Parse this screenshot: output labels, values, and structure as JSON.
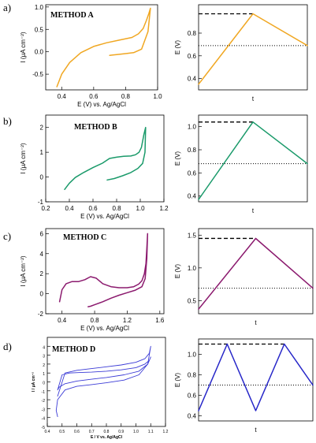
{
  "panel_labels": [
    "a)",
    "b)",
    "c)",
    "d)"
  ],
  "chart_data": [
    {
      "type": "line",
      "panel": "a)",
      "title": "METHOD A",
      "xlabel": "E (V) vs. Ag/AgCl",
      "ylabel": "I (μA cm⁻²)",
      "xlim": [
        0.3,
        1.0
      ],
      "ylim": [
        -0.85,
        1.05
      ],
      "xticks": [
        "0.4",
        "0.6",
        "0.8",
        "1.0"
      ],
      "yticks": [
        "1.0",
        "0.5",
        "0.0",
        "-0.5"
      ],
      "color": "#f0a722",
      "series": [
        {
          "x": [
            0.37,
            0.4,
            0.45,
            0.52,
            0.6,
            0.68,
            0.76,
            0.84,
            0.88,
            0.91,
            0.93,
            0.945,
            0.955,
            0.94,
            0.9,
            0.85,
            0.8,
            0.75,
            0.72,
            0.7
          ],
          "y": [
            -0.78,
            -0.5,
            -0.24,
            -0.02,
            0.12,
            0.2,
            0.26,
            0.32,
            0.4,
            0.52,
            0.7,
            0.85,
            0.97,
            0.45,
            0.06,
            -0.02,
            -0.04,
            -0.06,
            -0.07,
            -0.08
          ]
        }
      ]
    },
    {
      "type": "line",
      "panel": "a)",
      "title": "",
      "xlabel": "t",
      "ylabel": "E (V)",
      "xlim": [
        0,
        1
      ],
      "ylim": [
        0.3,
        1.05
      ],
      "yticks": [
        "0.8",
        "0.6",
        "0.4"
      ],
      "color": "#f0a722",
      "dashed_level": 0.97,
      "dotted_level": 0.69,
      "series": [
        {
          "x": [
            0.0,
            0.5,
            1.0
          ],
          "y": [
            0.35,
            0.97,
            0.69
          ]
        }
      ]
    },
    {
      "type": "line",
      "panel": "b)",
      "title": "METHOD B",
      "xlabel": "E (V) vs. Ag/AgCl",
      "ylabel": "I (μA cm⁻²)",
      "xlim": [
        0.2,
        1.2
      ],
      "ylim": [
        -1.0,
        2.5
      ],
      "xticks": [
        "0.2",
        "0.4",
        "0.6",
        "0.8",
        "1.0",
        "1.2"
      ],
      "yticks": [
        "2",
        "1",
        "0",
        "-1"
      ],
      "color": "#1a9a6a",
      "series": [
        {
          "x": [
            0.36,
            0.4,
            0.45,
            0.52,
            0.6,
            0.68,
            0.74,
            0.8,
            0.86,
            0.92,
            0.96,
            0.99,
            1.01,
            1.02,
            1.03,
            1.04,
            1.045,
            1.04,
            1.02,
            0.98,
            0.92,
            0.85,
            0.78,
            0.72
          ],
          "y": [
            -0.5,
            -0.25,
            -0.02,
            0.18,
            0.38,
            0.56,
            0.75,
            0.8,
            0.84,
            0.85,
            0.9,
            1.0,
            1.2,
            1.45,
            1.7,
            1.9,
            2.0,
            1.0,
            0.55,
            0.35,
            0.18,
            0.05,
            -0.06,
            -0.12
          ]
        }
      ]
    },
    {
      "type": "line",
      "panel": "b)",
      "title": "",
      "xlabel": "t",
      "ylabel": "E (V)",
      "xlim": [
        0,
        1
      ],
      "ylim": [
        0.35,
        1.1
      ],
      "yticks": [
        "1.0",
        "0.8",
        "0.6",
        "0.4"
      ],
      "color": "#1a9a6a",
      "dashed_level": 1.04,
      "dotted_level": 0.68,
      "series": [
        {
          "x": [
            0.0,
            0.5,
            1.0
          ],
          "y": [
            0.37,
            1.04,
            0.68
          ]
        }
      ]
    },
    {
      "type": "line",
      "panel": "c)",
      "title": "METHOD C",
      "xlabel": "E (V) vs. Ag/AgCl",
      "ylabel": "I (μA cm⁻²)",
      "xlim": [
        0.2,
        1.65
      ],
      "ylim": [
        -2,
        6.5
      ],
      "xticks": [
        "0.4",
        "0.8",
        "1.2",
        "1.6"
      ],
      "yticks": [
        "6",
        "4",
        "2",
        "0",
        "-2"
      ],
      "color": "#8b1a6e",
      "series": [
        {
          "x": [
            0.37,
            0.4,
            0.45,
            0.52,
            0.6,
            0.68,
            0.75,
            0.82,
            0.9,
            1.0,
            1.1,
            1.2,
            1.28,
            1.34,
            1.38,
            1.41,
            1.43,
            1.44,
            1.45,
            1.44,
            1.42,
            1.38,
            1.3,
            1.2,
            1.1,
            1.0,
            0.9,
            0.8,
            0.75,
            0.72
          ],
          "y": [
            -0.8,
            0.4,
            1.0,
            1.2,
            1.2,
            1.4,
            1.7,
            1.55,
            1.0,
            0.7,
            0.6,
            0.6,
            0.7,
            0.95,
            1.3,
            2.0,
            3.0,
            4.5,
            6.0,
            3.5,
            1.5,
            0.7,
            0.35,
            0.1,
            -0.15,
            -0.45,
            -0.8,
            -1.1,
            -1.25,
            -1.3
          ]
        }
      ]
    },
    {
      "type": "line",
      "panel": "c)",
      "title": "",
      "xlabel": "t",
      "ylabel": "E (V)",
      "xlim": [
        0,
        1
      ],
      "ylim": [
        0.3,
        1.6
      ],
      "yticks": [
        "1.5",
        "1.0",
        "0.5"
      ],
      "color": "#8b1a6e",
      "dashed_level": 1.45,
      "dotted_level": 0.69,
      "series": [
        {
          "x": [
            0.0,
            0.5,
            1.0
          ],
          "y": [
            0.37,
            1.45,
            0.69
          ]
        }
      ]
    },
    {
      "type": "line",
      "panel": "d)",
      "title": "METHOD D",
      "xlabel": "E / V vs. Ag/AgCl",
      "ylabel": "I / μA cm⁻²",
      "xlim": [
        0.4,
        1.2
      ],
      "ylim": [
        -5,
        5
      ],
      "xticks": [
        "0.4",
        "0.5",
        "0.6",
        "0.7",
        "0.8",
        "0.9",
        "1.0",
        "1.1",
        "1.2"
      ],
      "yticks": [
        "4",
        "3",
        "2",
        "1",
        "0",
        "-1",
        "-2",
        "-3",
        "-4",
        "-5"
      ],
      "color": "#3b3bd6",
      "series": [
        {
          "name": "",
          "x": [
            0.47,
            0.52,
            0.6,
            0.7,
            0.8,
            0.9,
            1.0,
            1.06,
            1.09,
            1.1,
            1.08,
            1.02,
            0.92,
            0.8,
            0.7,
            0.6,
            0.52,
            0.47,
            0.46,
            0.47
          ],
          "y": [
            -1.6,
            1.0,
            1.3,
            1.5,
            1.7,
            1.9,
            2.2,
            2.6,
            3.2,
            4.0,
            2.0,
            0.8,
            0.2,
            -0.1,
            -0.3,
            -0.5,
            -0.9,
            -2.0,
            -3.2,
            -3.9
          ]
        },
        {
          "name": "",
          "x": [
            0.47,
            0.5,
            0.55,
            0.62,
            0.7,
            0.8,
            0.9,
            1.0,
            1.06,
            1.09,
            1.1,
            1.08,
            1.02,
            0.92,
            0.8,
            0.7,
            0.6,
            0.52,
            0.48,
            0.47
          ],
          "y": [
            -0.9,
            0.8,
            1.0,
            1.05,
            1.1,
            1.2,
            1.35,
            1.6,
            2.0,
            2.4,
            2.8,
            2.0,
            1.2,
            0.8,
            0.5,
            0.3,
            0.1,
            -0.2,
            -0.6,
            -0.9
          ]
        }
      ]
    },
    {
      "type": "line",
      "panel": "d)",
      "title": "",
      "xlabel": "t",
      "ylabel": "E (V)",
      "xlim": [
        0,
        1
      ],
      "ylim": [
        0.35,
        1.15
      ],
      "yticks": [
        "1.0",
        "0.8",
        "0.6",
        "0.4"
      ],
      "color": "#2626c8",
      "dashed_level": 1.1,
      "dotted_level": 0.7,
      "series": [
        {
          "x": [
            0.0,
            0.25,
            0.5,
            0.75,
            1.0
          ],
          "y": [
            0.45,
            1.1,
            0.45,
            1.1,
            0.7
          ]
        }
      ]
    }
  ]
}
